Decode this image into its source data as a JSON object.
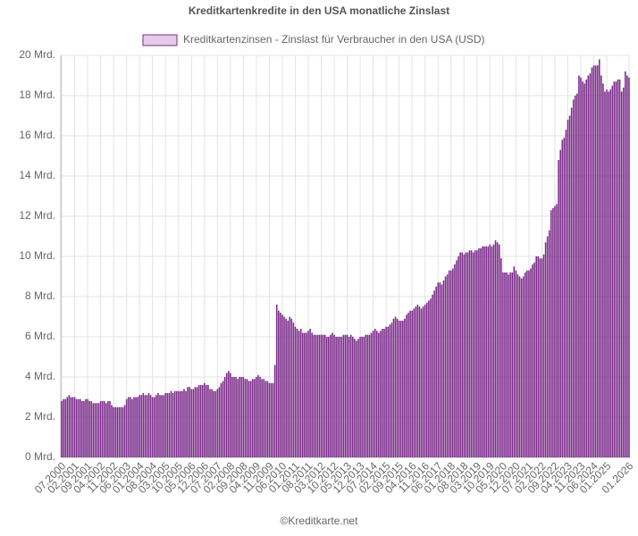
{
  "chart_data": {
    "type": "bar",
    "title": "Kreditkartenkredite in den USA monatliche Zinslast",
    "legend": "Kreditkartenzinsen - Zinslast für Verbraucher in den USA (USD)",
    "source": "©Kreditkarte.net",
    "color": "#7b2c8a",
    "legend_fill": "#e4cce8",
    "grid": true,
    "ylim": [
      0,
      20
    ],
    "yticks": [
      {
        "value": 0,
        "label": "0 Mrd."
      },
      {
        "value": 2,
        "label": "2 Mrd."
      },
      {
        "value": 4,
        "label": "4 Mrd."
      },
      {
        "value": 6,
        "label": "6 Mrd."
      },
      {
        "value": 8,
        "label": "8 Mrd."
      },
      {
        "value": 10,
        "label": "10 Mrd."
      },
      {
        "value": 12,
        "label": "12 Mrd."
      },
      {
        "value": 14,
        "label": "14 Mrd."
      },
      {
        "value": 16,
        "label": "16 Mrd."
      },
      {
        "value": 18,
        "label": "18 Mrd."
      },
      {
        "value": 20,
        "label": "20 Mrd."
      }
    ],
    "categories": [
      "07.2000",
      null,
      null,
      null,
      null,
      null,
      null,
      "02.2001",
      null,
      null,
      null,
      null,
      null,
      null,
      "09.2001",
      null,
      null,
      null,
      null,
      null,
      null,
      "04.2002",
      null,
      null,
      null,
      null,
      null,
      null,
      "11.2002",
      null,
      null,
      null,
      null,
      null,
      null,
      "06.2003",
      null,
      null,
      null,
      null,
      null,
      null,
      "01.2004",
      null,
      null,
      null,
      null,
      null,
      null,
      "08.2004",
      null,
      null,
      null,
      null,
      null,
      null,
      "03.2005",
      null,
      null,
      null,
      null,
      null,
      null,
      "10.2005",
      null,
      null,
      null,
      null,
      null,
      null,
      "05.2006",
      null,
      null,
      null,
      null,
      null,
      null,
      "12.2006",
      null,
      null,
      null,
      null,
      null,
      null,
      "07.2007",
      null,
      null,
      null,
      null,
      null,
      null,
      "02.2008",
      null,
      null,
      null,
      null,
      null,
      null,
      "09.2008",
      null,
      null,
      null,
      null,
      null,
      null,
      "04.2009",
      null,
      null,
      null,
      null,
      null,
      null,
      "11.2009",
      null,
      null,
      null,
      null,
      null,
      null,
      "06.2010",
      null,
      null,
      null,
      null,
      null,
      null,
      "01.2011",
      null,
      null,
      null,
      null,
      null,
      null,
      "08.2011",
      null,
      null,
      null,
      null,
      null,
      null,
      "03.2012",
      null,
      null,
      null,
      null,
      null,
      null,
      "10.2012",
      null,
      null,
      null,
      null,
      null,
      null,
      "05.2013",
      null,
      null,
      null,
      null,
      null,
      null,
      "12.2013",
      null,
      null,
      null,
      null,
      null,
      null,
      "07.2014",
      null,
      null,
      null,
      null,
      null,
      null,
      "02.2015",
      null,
      null,
      null,
      null,
      null,
      null,
      "09.2015",
      null,
      null,
      null,
      null,
      null,
      null,
      "04.2016",
      null,
      null,
      null,
      null,
      null,
      null,
      "11.2016",
      null,
      null,
      null,
      null,
      null,
      null,
      "06.2017",
      null,
      null,
      null,
      null,
      null,
      null,
      "01.2018",
      null,
      null,
      null,
      null,
      null,
      null,
      "08.2018",
      null,
      null,
      null,
      null,
      null,
      null,
      "03.2019",
      null,
      null,
      null,
      null,
      null,
      null,
      "10.2019",
      null,
      null,
      null,
      null,
      null,
      null,
      "05.2020",
      null,
      null,
      null,
      null,
      null,
      null,
      "12.2020",
      null,
      null,
      null,
      null,
      null,
      null,
      "07.2021",
      null,
      null,
      null,
      null,
      null,
      null,
      "02.2022",
      null,
      null,
      null,
      null,
      null,
      null,
      "09.2022",
      null,
      null,
      null,
      null,
      null,
      null,
      "04.2023",
      null,
      null,
      null,
      null,
      null,
      null,
      "11.2023",
      null,
      null,
      null,
      null,
      null,
      null,
      "06.2024",
      null,
      null,
      null,
      null,
      null,
      null,
      "01.2025",
      null,
      null,
      null,
      null,
      null,
      null,
      null,
      null,
      null,
      null,
      null,
      "01.2026"
    ],
    "values": [
      2.8,
      2.9,
      2.9,
      3.0,
      3.1,
      3.0,
      3.0,
      3.0,
      2.9,
      2.9,
      2.9,
      2.8,
      2.8,
      2.9,
      2.9,
      2.8,
      2.8,
      2.7,
      2.7,
      2.7,
      2.7,
      2.8,
      2.8,
      2.8,
      2.7,
      2.8,
      2.8,
      2.6,
      2.5,
      2.5,
      2.5,
      2.5,
      2.5,
      2.5,
      2.6,
      2.9,
      3.0,
      3.0,
      2.9,
      3.0,
      3.0,
      3.0,
      3.1,
      3.1,
      3.2,
      3.1,
      3.1,
      3.2,
      3.1,
      3.0,
      3.0,
      3.1,
      3.2,
      3.1,
      3.1,
      3.1,
      3.2,
      3.2,
      3.2,
      3.3,
      3.2,
      3.3,
      3.3,
      3.3,
      3.3,
      3.3,
      3.4,
      3.3,
      3.5,
      3.5,
      3.4,
      3.4,
      3.5,
      3.5,
      3.6,
      3.6,
      3.6,
      3.7,
      3.6,
      3.6,
      3.4,
      3.4,
      3.3,
      3.3,
      3.4,
      3.5,
      3.7,
      3.8,
      4.0,
      4.2,
      4.3,
      4.2,
      4.0,
      4.0,
      4.0,
      3.9,
      4.0,
      4.0,
      4.0,
      3.9,
      3.9,
      3.8,
      3.8,
      3.9,
      3.9,
      4.0,
      4.1,
      4.0,
      3.9,
      3.9,
      3.8,
      3.8,
      3.7,
      3.7,
      3.7,
      4.6,
      7.6,
      7.3,
      7.2,
      7.1,
      7.0,
      6.9,
      6.8,
      7.0,
      6.9,
      6.7,
      6.5,
      6.4,
      6.3,
      6.4,
      6.2,
      6.2,
      6.2,
      6.3,
      6.4,
      6.2,
      6.1,
      6.1,
      6.1,
      6.1,
      6.1,
      6.1,
      6.1,
      6.0,
      6.0,
      6.1,
      6.2,
      6.1,
      6.0,
      6.0,
      6.0,
      6.0,
      6.1,
      6.1,
      6.1,
      6.0,
      6.1,
      6.0,
      5.9,
      5.8,
      5.9,
      6.0,
      6.0,
      6.0,
      6.1,
      6.1,
      6.1,
      6.2,
      6.3,
      6.4,
      6.3,
      6.2,
      6.3,
      6.4,
      6.4,
      6.5,
      6.5,
      6.6,
      6.7,
      6.9,
      7.0,
      6.9,
      6.8,
      6.8,
      6.8,
      6.9,
      7.1,
      7.2,
      7.3,
      7.3,
      7.4,
      7.5,
      7.6,
      7.5,
      7.4,
      7.5,
      7.6,
      7.7,
      7.8,
      7.9,
      8.1,
      8.3,
      8.5,
      8.7,
      8.7,
      8.6,
      8.8,
      9.0,
      9.1,
      9.3,
      9.3,
      9.4,
      9.6,
      9.8,
      10.0,
      10.2,
      10.2,
      10.1,
      10.2,
      10.2,
      10.3,
      10.3,
      10.2,
      10.3,
      10.3,
      10.4,
      10.4,
      10.5,
      10.5,
      10.5,
      10.5,
      10.6,
      10.5,
      10.6,
      10.8,
      10.7,
      10.6,
      9.9,
      9.2,
      9.2,
      9.2,
      9.1,
      9.2,
      9.2,
      9.5,
      9.3,
      9.1,
      9.0,
      8.9,
      9.0,
      9.2,
      9.3,
      9.3,
      9.4,
      9.6,
      9.7,
      10.0,
      10.0,
      9.9,
      9.9,
      10.1,
      10.7,
      11.0,
      11.3,
      12.3,
      12.4,
      12.5,
      12.6,
      14.8,
      15.3,
      15.8,
      15.9,
      16.3,
      16.8,
      17.0,
      17.4,
      17.8,
      18.0,
      18.1,
      19.0,
      18.9,
      18.7,
      18.6,
      18.8,
      19.0,
      19.1,
      19.4,
      19.5,
      19.5,
      19.5,
      19.8,
      19.0,
      18.6,
      18.2,
      18.3,
      18.2,
      18.3,
      18.5,
      18.7,
      18.7,
      18.8,
      18.8,
      18.2,
      18.4,
      19.2,
      19.0,
      18.9
    ]
  }
}
